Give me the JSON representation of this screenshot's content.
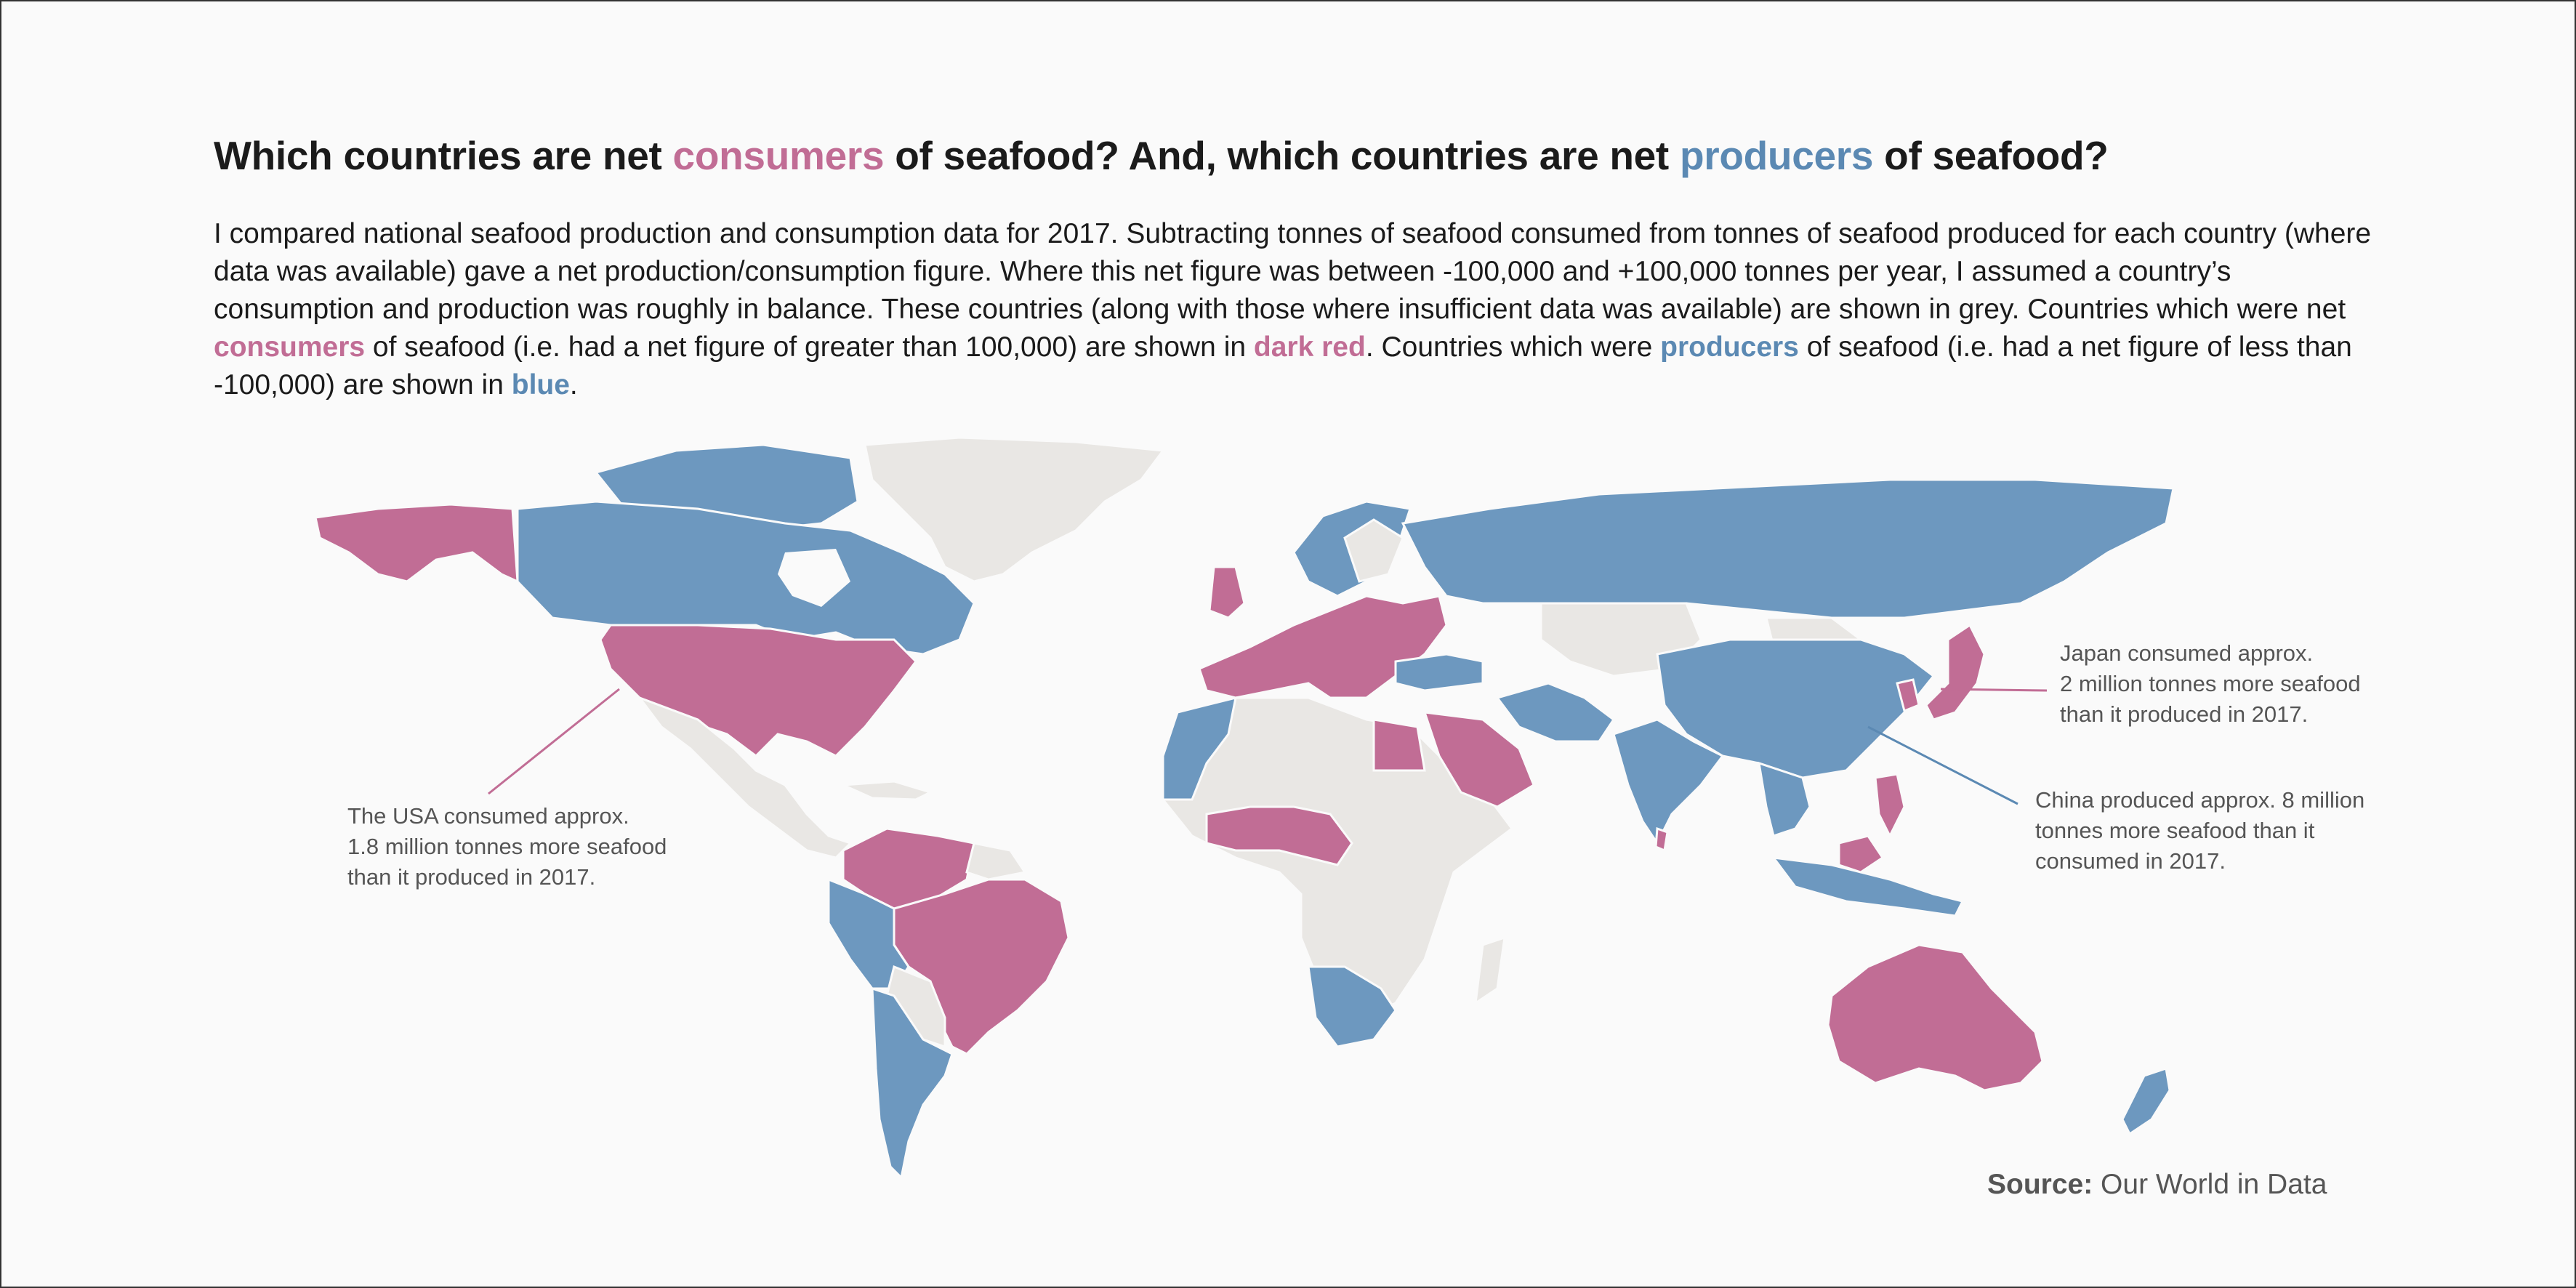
{
  "title": {
    "part1": "Which countries are net ",
    "consumers": "consumers",
    "part2": " of seafood? And, which countries are net ",
    "producers": "producers",
    "part3": " of seafood?"
  },
  "intro": {
    "p1": "I compared national seafood production and consumption data for 2017.  Subtracting tonnes of seafood consumed from tonnes of seafood produced for each country (where data was available) gave a net production/consumption figure. Where this net figure was between -100,000 and +100,000 tonnes per year, I assumed a country’s consumption and production was roughly in balance.  These countries (along with those where insufficient data was available) are shown in grey. Countries which were net ",
    "consumers": "consumers",
    "p2": " of seafood (i.e. had a net figure of greater than 100,000) are shown in ",
    "dark_red": "dark red",
    "p3": ". Countries which were ",
    "producers": "producers",
    "p4": " of seafood (i.e. had a net figure of less than -100,000) are shown in ",
    "blue": "blue",
    "p5": "."
  },
  "colors": {
    "consumer": "#c16d95",
    "producer": "#6d98bf",
    "neutral": "#e9e7e4",
    "background": "#fafafa"
  },
  "annotations": {
    "usa": "The USA consumed approx.\n1.8 million tonnes more seafood\nthan it produced in 2017.",
    "japan": "Japan consumed approx.\n2 million tonnes more seafood\nthan it produced in 2017.",
    "china": "China produced approx. 8 million\ntonnes more seafood than it\nconsumed in 2017."
  },
  "source": {
    "label": "Source:",
    "text": " Our World in Data"
  }
}
